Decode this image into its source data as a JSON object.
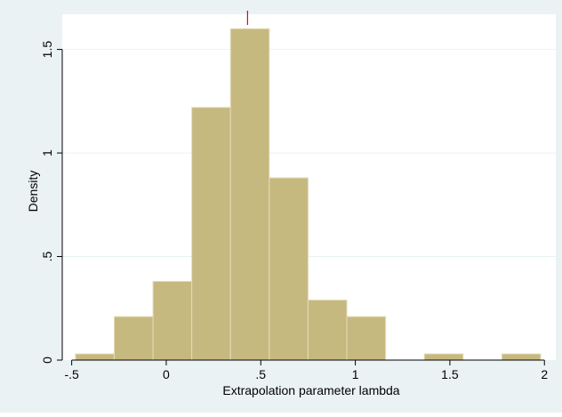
{
  "chart_data": {
    "type": "bar",
    "subtype": "histogram",
    "title": "",
    "xlabel": "Extrapolation parameter lambda",
    "ylabel": "Density",
    "xlim": [
      -0.55,
      2.06
    ],
    "ylim": [
      0,
      1.67
    ],
    "x_ticks": [
      {
        "value": -0.5,
        "label": "-.5"
      },
      {
        "value": 0,
        "label": "0"
      },
      {
        "value": 0.5,
        "label": ".5"
      },
      {
        "value": 1,
        "label": "1"
      },
      {
        "value": 1.5,
        "label": "1.5"
      },
      {
        "value": 2,
        "label": "2"
      }
    ],
    "y_ticks": [
      {
        "value": 0,
        "label": "0"
      },
      {
        "value": 0.5,
        "label": ".5"
      },
      {
        "value": 1,
        "label": "1"
      },
      {
        "value": 1.5,
        "label": "1.5"
      }
    ],
    "bins": [
      {
        "start": -0.48,
        "end": -0.275,
        "density": 0.03
      },
      {
        "start": -0.275,
        "end": -0.07,
        "density": 0.21
      },
      {
        "start": -0.07,
        "end": 0.135,
        "density": 0.38
      },
      {
        "start": 0.135,
        "end": 0.34,
        "density": 1.22
      },
      {
        "start": 0.34,
        "end": 0.545,
        "density": 1.6
      },
      {
        "start": 0.545,
        "end": 0.75,
        "density": 0.88
      },
      {
        "start": 0.75,
        "end": 0.955,
        "density": 0.29
      },
      {
        "start": 0.955,
        "end": 1.16,
        "density": 0.21
      },
      {
        "start": 1.16,
        "end": 1.365,
        "density": 0
      },
      {
        "start": 1.365,
        "end": 1.57,
        "density": 0.03
      },
      {
        "start": 1.57,
        "end": 1.775,
        "density": 0
      },
      {
        "start": 1.775,
        "end": 1.98,
        "density": 0.03
      }
    ],
    "reference_line": {
      "x": 0.43,
      "color": "#c8102e"
    },
    "grid": true,
    "colors": {
      "bar_fill": "#c6b97f",
      "bar_stroke": "#e4dcba",
      "outer_background": "#eaf2f3",
      "plot_background": "#ffffff",
      "grid": "#eaf2f3"
    }
  }
}
